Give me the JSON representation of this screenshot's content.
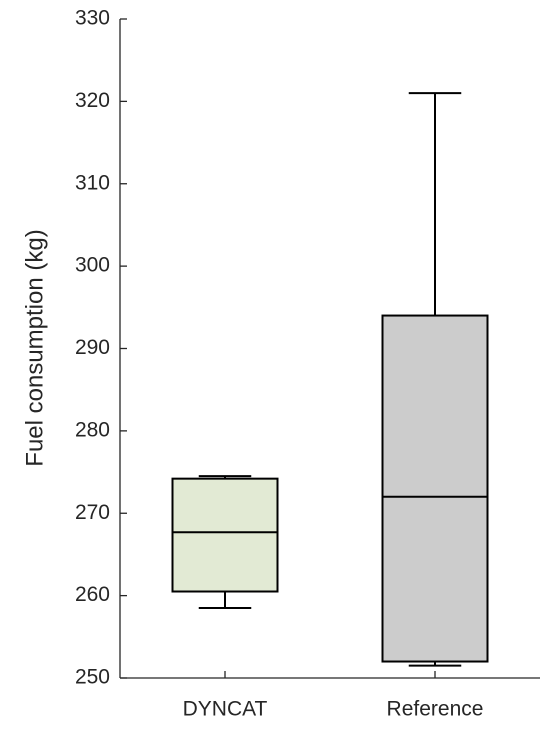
{
  "chart_data": {
    "type": "box",
    "ylabel": "Fuel consumption (kg)",
    "categories": [
      "DYNCAT",
      "Reference"
    ],
    "whisker_low": [
      258.5,
      251.5
    ],
    "q1": [
      260.5,
      252
    ],
    "median": [
      267.7,
      272
    ],
    "q3": [
      274.2,
      294
    ],
    "whisker_high": [
      274.5,
      321
    ],
    "colors": [
      "#e2ead4",
      "#cccccc"
    ],
    "ylim": [
      250,
      330
    ],
    "yticks": [
      250,
      260,
      270,
      280,
      290,
      300,
      310,
      320,
      330
    ],
    "grid": false
  }
}
